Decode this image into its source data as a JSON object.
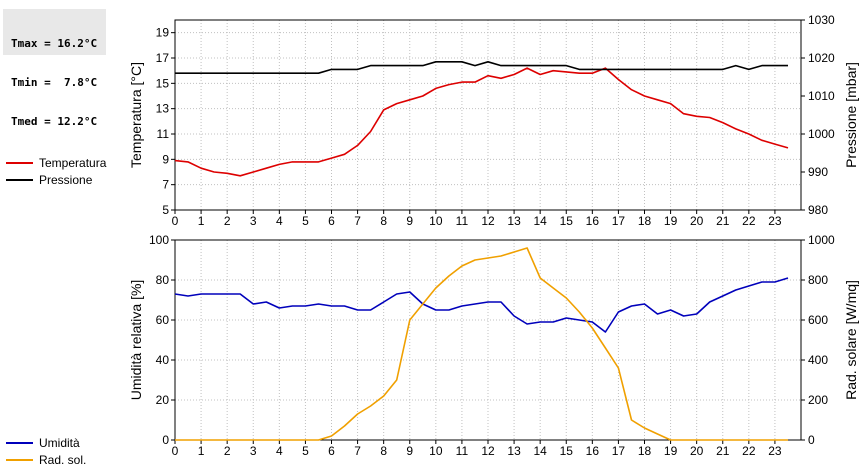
{
  "stats": {
    "tmax": "Tmax = 16.2°C",
    "tmin": "Tmin =  7.8°C",
    "tmed": "Tmed = 12.2°C"
  },
  "legend_top": [
    {
      "label": "Temperatura",
      "color": "#dd0000"
    },
    {
      "label": "Pressione",
      "color": "#000000"
    }
  ],
  "legend_bottom": [
    {
      "label": "Umidità",
      "color": "#0000bb"
    },
    {
      "label": "Rad. sol.",
      "color": "#f0a000"
    }
  ],
  "chart_data": [
    {
      "type": "line",
      "xlim": [
        0,
        24
      ],
      "xticks": [
        0,
        1,
        2,
        3,
        4,
        5,
        6,
        7,
        8,
        9,
        10,
        11,
        12,
        13,
        14,
        15,
        16,
        17,
        18,
        19,
        20,
        21,
        22,
        23
      ],
      "ylabel": "Temperatura [°C]",
      "ylim": [
        5,
        20
      ],
      "yticks": [
        5,
        7,
        9,
        11,
        13,
        15,
        17,
        19
      ],
      "y2label": "Pressione [mbar]",
      "y2lim": [
        980,
        1030
      ],
      "y2ticks": [
        980,
        990,
        1000,
        1010,
        1020,
        1030
      ],
      "grid": true,
      "series": [
        {
          "name": "Temperatura",
          "axis": "left",
          "color": "#dd0000",
          "x": [
            0,
            0.5,
            1,
            1.5,
            2,
            2.5,
            3,
            3.5,
            4,
            4.5,
            5,
            5.5,
            6,
            6.5,
            7,
            7.5,
            8,
            8.5,
            9,
            9.5,
            10,
            10.5,
            11,
            11.5,
            12,
            12.5,
            13,
            13.5,
            14,
            14.5,
            15,
            15.5,
            16,
            16.5,
            17,
            17.5,
            18,
            18.5,
            19,
            19.5,
            20,
            20.5,
            21,
            21.5,
            22,
            22.5,
            23,
            23.5
          ],
          "values": [
            8.9,
            8.8,
            8.3,
            8.0,
            7.9,
            7.7,
            8.0,
            8.3,
            8.6,
            8.8,
            8.8,
            8.8,
            9.1,
            9.4,
            10.1,
            11.2,
            12.9,
            13.4,
            13.7,
            14.0,
            14.6,
            14.9,
            15.1,
            15.1,
            15.6,
            15.4,
            15.7,
            16.2,
            15.7,
            16.0,
            15.9,
            15.8,
            15.8,
            16.2,
            15.3,
            14.5,
            14.0,
            13.7,
            13.4,
            12.6,
            12.4,
            12.3,
            11.9,
            11.4,
            11.0,
            10.5,
            10.2,
            9.9
          ]
        },
        {
          "name": "Pressione",
          "axis": "right",
          "color": "#000000",
          "x": [
            0,
            0.5,
            1,
            1.5,
            2,
            2.5,
            3,
            3.5,
            4,
            4.5,
            5,
            5.5,
            6,
            6.5,
            7,
            7.5,
            8,
            8.5,
            9,
            9.5,
            10,
            10.5,
            11,
            11.5,
            12,
            12.5,
            13,
            13.5,
            14,
            14.5,
            15,
            15.5,
            16,
            16.5,
            17,
            17.5,
            18,
            18.5,
            19,
            19.5,
            20,
            20.5,
            21,
            21.5,
            22,
            22.5,
            23,
            23.5
          ],
          "values": [
            1016,
            1016,
            1016,
            1016,
            1016,
            1016,
            1016,
            1016,
            1016,
            1016,
            1016,
            1016,
            1017,
            1017,
            1017,
            1018,
            1018,
            1018,
            1018,
            1018,
            1019,
            1019,
            1019,
            1018,
            1019,
            1018,
            1018,
            1018,
            1018,
            1018,
            1018,
            1017,
            1017,
            1017,
            1017,
            1017,
            1017,
            1017,
            1017,
            1017,
            1017,
            1017,
            1017,
            1018,
            1017,
            1018,
            1018,
            1018
          ]
        }
      ]
    },
    {
      "type": "line",
      "xlim": [
        0,
        24
      ],
      "xticks": [
        0,
        1,
        2,
        3,
        4,
        5,
        6,
        7,
        8,
        9,
        10,
        11,
        12,
        13,
        14,
        15,
        16,
        17,
        18,
        19,
        20,
        21,
        22,
        23
      ],
      "ylabel": "Umidità relativa [%]",
      "ylim": [
        0,
        100
      ],
      "yticks": [
        0,
        20,
        40,
        60,
        80,
        100
      ],
      "y2label": "Rad. solare [W/mq]",
      "y2lim": [
        0,
        1000
      ],
      "y2ticks": [
        0,
        200,
        400,
        600,
        800,
        1000
      ],
      "grid": true,
      "series": [
        {
          "name": "Umidità",
          "axis": "left",
          "color": "#0000bb",
          "x": [
            0,
            0.5,
            1,
            1.5,
            2,
            2.5,
            3,
            3.5,
            4,
            4.5,
            5,
            5.5,
            6,
            6.5,
            7,
            7.5,
            8,
            8.5,
            9,
            9.5,
            10,
            10.5,
            11,
            11.5,
            12,
            12.5,
            13,
            13.5,
            14,
            14.5,
            15,
            15.5,
            16,
            16.5,
            17,
            17.5,
            18,
            18.5,
            19,
            19.5,
            20,
            20.5,
            21,
            21.5,
            22,
            22.5,
            23,
            23.5
          ],
          "values": [
            73,
            72,
            73,
            73,
            73,
            73,
            68,
            69,
            66,
            67,
            67,
            68,
            67,
            67,
            65,
            65,
            69,
            73,
            74,
            68,
            65,
            65,
            67,
            68,
            69,
            69,
            62,
            58,
            59,
            59,
            61,
            60,
            59,
            54,
            64,
            67,
            68,
            63,
            65,
            62,
            63,
            69,
            72,
            75,
            77,
            79,
            79,
            81
          ]
        },
        {
          "name": "Rad. sol.",
          "axis": "right",
          "color": "#f0a000",
          "x": [
            0,
            0.5,
            1,
            1.5,
            2,
            2.5,
            3,
            3.5,
            4,
            4.5,
            5,
            5.5,
            6,
            6.5,
            7,
            7.5,
            8,
            8.5,
            9,
            9.5,
            10,
            10.5,
            11,
            11.5,
            12,
            12.5,
            13,
            13.5,
            14,
            14.5,
            15,
            15.5,
            16,
            16.5,
            17,
            17.5,
            18,
            18.5,
            19,
            19.5,
            20,
            20.5,
            21,
            21.5,
            22,
            22.5,
            23,
            23.5
          ],
          "values": [
            0,
            0,
            0,
            0,
            0,
            0,
            0,
            0,
            0,
            0,
            0,
            0,
            20,
            70,
            130,
            170,
            220,
            300,
            600,
            680,
            760,
            820,
            870,
            900,
            910,
            920,
            940,
            960,
            810,
            760,
            710,
            640,
            560,
            460,
            360,
            100,
            60,
            30,
            0,
            0,
            0,
            0,
            0,
            0,
            0,
            0,
            0,
            0
          ]
        }
      ]
    }
  ]
}
